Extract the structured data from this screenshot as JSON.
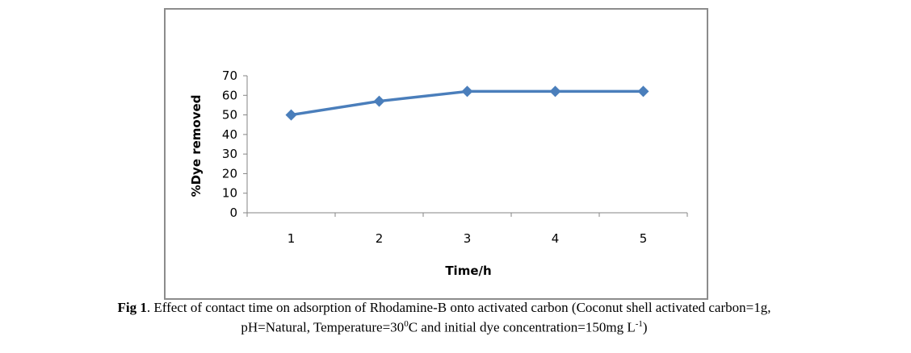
{
  "chart_data": {
    "type": "line",
    "title": "",
    "xlabel": "Time/h",
    "ylabel": "%Dye removed",
    "categories": [
      "1",
      "2",
      "3",
      "4",
      "5"
    ],
    "series": [
      {
        "name": "%Dye removed",
        "values": [
          50,
          57,
          62,
          62,
          62
        ],
        "color": "#4a7ebb",
        "marker": "diamond"
      }
    ],
    "ylim": [
      0,
      70
    ],
    "yticks": [
      0,
      10,
      20,
      30,
      40,
      50,
      60,
      70
    ],
    "grid": false,
    "legend": "none"
  },
  "caption": {
    "fig_label": "Fig 1",
    "line1_rest": ". Effect of contact time on adsorption of Rhodamine-B onto activated carbon (Coconut shell activated carbon=1g,",
    "line2_a": "pH=Natural, Temperature=30",
    "line2_sup1": "0",
    "line2_b": "C and initial dye concentration=150mg L",
    "line2_sup2": "-1",
    "line2_c": ")"
  }
}
